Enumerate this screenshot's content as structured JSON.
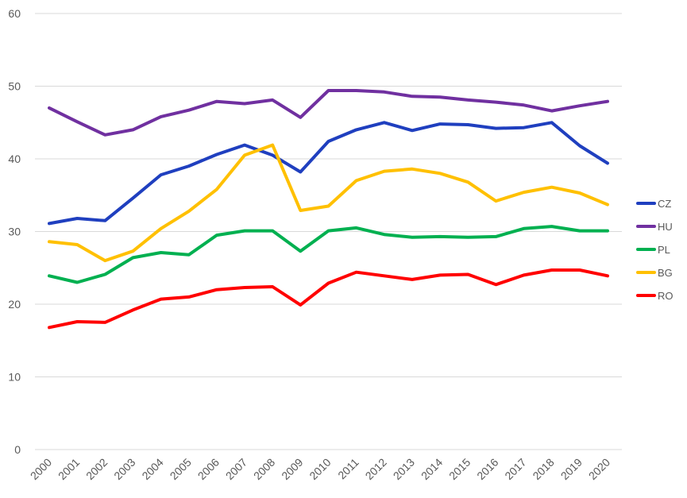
{
  "chart_data": {
    "type": "line",
    "categories": [
      "2000",
      "2001",
      "2002",
      "2003",
      "2004",
      "2005",
      "2006",
      "2007",
      "2008",
      "2009",
      "2010",
      "2011",
      "2012",
      "2013",
      "2014",
      "2015",
      "2016",
      "2017",
      "2018",
      "2019",
      "2020"
    ],
    "ylim": [
      0,
      60
    ],
    "yticks": [
      0,
      10,
      20,
      30,
      40,
      50,
      60
    ],
    "grid": true,
    "legend_position": "right",
    "series": [
      {
        "name": "CZ",
        "color": "#1f3fbf",
        "values": [
          31.1,
          31.8,
          31.5,
          34.6,
          37.8,
          39.0,
          40.6,
          41.9,
          40.5,
          38.2,
          42.4,
          44.0,
          45.0,
          43.9,
          44.8,
          44.7,
          44.2,
          44.3,
          45.0,
          41.8,
          39.4
        ]
      },
      {
        "name": "HU",
        "color": "#7030a0",
        "values": [
          47.0,
          45.1,
          43.3,
          44.0,
          45.8,
          46.7,
          47.9,
          47.6,
          48.1,
          45.7,
          49.4,
          49.4,
          49.2,
          48.6,
          48.5,
          48.1,
          47.8,
          47.4,
          46.6,
          47.3,
          47.9
        ]
      },
      {
        "name": "PL",
        "color": "#00b050",
        "values": [
          23.9,
          23.0,
          24.1,
          26.4,
          27.1,
          26.8,
          29.5,
          30.1,
          30.1,
          27.3,
          30.1,
          30.5,
          29.6,
          29.2,
          29.3,
          29.2,
          29.3,
          30.4,
          30.7,
          30.1,
          30.1
        ]
      },
      {
        "name": "BG",
        "color": "#ffc000",
        "values": [
          28.6,
          28.2,
          26.0,
          27.3,
          30.4,
          32.8,
          35.8,
          40.5,
          41.9,
          32.9,
          33.5,
          37.0,
          38.3,
          38.6,
          38.0,
          36.8,
          34.2,
          35.4,
          36.1,
          35.3,
          33.7
        ]
      },
      {
        "name": "RO",
        "color": "#ff0000",
        "values": [
          16.8,
          17.6,
          17.5,
          19.2,
          20.7,
          21.0,
          22.0,
          22.3,
          22.4,
          19.9,
          22.9,
          24.4,
          23.9,
          23.4,
          24.0,
          24.1,
          22.7,
          24.0,
          24.7,
          24.7,
          23.9
        ]
      }
    ]
  }
}
